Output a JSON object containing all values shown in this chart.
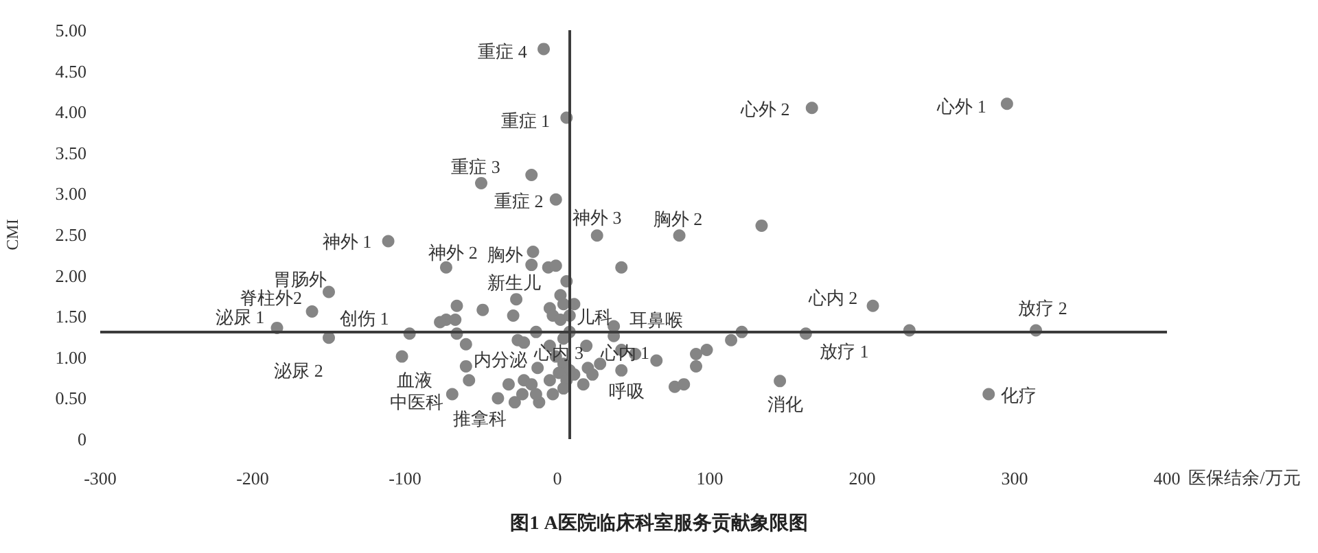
{
  "chart_data": {
    "type": "scatter",
    "title": "图1 A医院临床科室服务贡献象限图",
    "xlabel": "医保结余/万元",
    "ylabel": "CMI",
    "x": [
      -9,
      6,
      -50,
      -1,
      167,
      295,
      80,
      26,
      -111,
      -73,
      -16,
      6,
      -150,
      -161,
      -184,
      -150,
      -97,
      -102,
      -69,
      207,
      314,
      283,
      163,
      146,
      42,
      37,
      65,
      19,
      -13,
      -39,
      8,
      -17,
      134,
      -17,
      -6,
      -1,
      42,
      2,
      4,
      11,
      -5,
      -66,
      -49,
      -27,
      -29,
      -73,
      -67,
      -3,
      2,
      8,
      -66,
      -60,
      -26,
      -22,
      -14,
      4,
      -5,
      37,
      42,
      51,
      114,
      121,
      98,
      91,
      91,
      77,
      83,
      28,
      20,
      23,
      17,
      -1,
      4,
      8,
      1,
      -5,
      6,
      11,
      4,
      -3,
      -22,
      -17,
      -23,
      -28,
      -12,
      -14,
      -32,
      -60,
      -58,
      -77,
      231
    ],
    "values": [
      4.77,
      3.93,
      3.13,
      2.93,
      4.05,
      4.1,
      2.49,
      2.49,
      2.42,
      2.1,
      2.29,
      1.93,
      1.8,
      1.56,
      1.36,
      1.24,
      1.29,
      1.01,
      0.55,
      1.63,
      1.33,
      0.55,
      1.29,
      0.71,
      0.84,
      1.38,
      0.96,
      1.14,
      0.87,
      0.5,
      1.31,
      3.23,
      2.61,
      2.13,
      2.1,
      2.12,
      2.1,
      1.76,
      1.65,
      1.65,
      1.6,
      1.63,
      1.58,
      1.71,
      1.51,
      1.46,
      1.46,
      1.51,
      1.46,
      1.51,
      1.29,
      1.16,
      1.21,
      1.18,
      1.31,
      1.23,
      1.14,
      1.26,
      1.09,
      1.04,
      1.21,
      1.31,
      1.09,
      1.04,
      0.89,
      0.64,
      0.67,
      0.92,
      0.87,
      0.79,
      0.67,
      1.01,
      0.92,
      0.84,
      0.81,
      0.72,
      0.72,
      0.79,
      0.62,
      0.55,
      0.72,
      0.67,
      0.55,
      0.45,
      0.45,
      0.55,
      0.67,
      0.89,
      0.72,
      1.43,
      1.33
    ],
    "value_labels": [
      "重症 4",
      "重症 1",
      "重症 3",
      "重症 2",
      "心外 2",
      "心外 1",
      "胸外 2",
      "神外 3",
      "神外 1",
      "神外 2",
      "胸外",
      "新生儿",
      "胃肠外",
      "脊柱外2",
      "泌尿 1",
      "泌尿 2",
      "创伤 1",
      "血液",
      "中医科",
      "心内 2",
      "放疗 2",
      "化疗",
      "放疗 1",
      "消化",
      "呼吸",
      "耳鼻喉",
      "心内 1",
      "心内 3",
      "内分泌",
      "推拿科",
      "儿科",
      null,
      null,
      null,
      null,
      null,
      null,
      null,
      null,
      null,
      null,
      null,
      null,
      null,
      null,
      null,
      null,
      null,
      null,
      null,
      null,
      null,
      null,
      null,
      null,
      null,
      null,
      null,
      null,
      null,
      null,
      null,
      null,
      null,
      null,
      null,
      null,
      null,
      null,
      null,
      null,
      null,
      null,
      null,
      null,
      null,
      null,
      null,
      null,
      null,
      null,
      null,
      null,
      null,
      null,
      null,
      null,
      null,
      null,
      null,
      null
    ],
    "color": "#858585",
    "marker": "circle",
    "xlim": [
      -300,
      400
    ],
    "xticks": [
      -300,
      -200,
      -100,
      0,
      100,
      200,
      300,
      400
    ],
    "ylim": [
      0,
      5
    ],
    "yticks": [
      0,
      {
        "value": 0.5,
        "label": "0.50"
      },
      {
        "value": 1,
        "label": "1.00"
      },
      {
        "value": 1.5,
        "label": "1.50"
      },
      {
        "value": 2,
        "label": "2.00"
      },
      {
        "value": 2.5,
        "label": "2.50"
      },
      {
        "value": 3,
        "label": "3.00"
      },
      {
        "value": 3.5,
        "label": "3.50"
      },
      {
        "value": 4,
        "label": "4.00"
      },
      {
        "value": 4.5,
        "label": "4.50"
      },
      {
        "value": 5,
        "label": "5.00"
      }
    ],
    "ref_lines": [
      {
        "axis": "y",
        "value": 1.32,
        "color": "#3c3c3c"
      },
      {
        "axis": "x",
        "value": 8,
        "color": "#3c3c3c"
      }
    ]
  }
}
